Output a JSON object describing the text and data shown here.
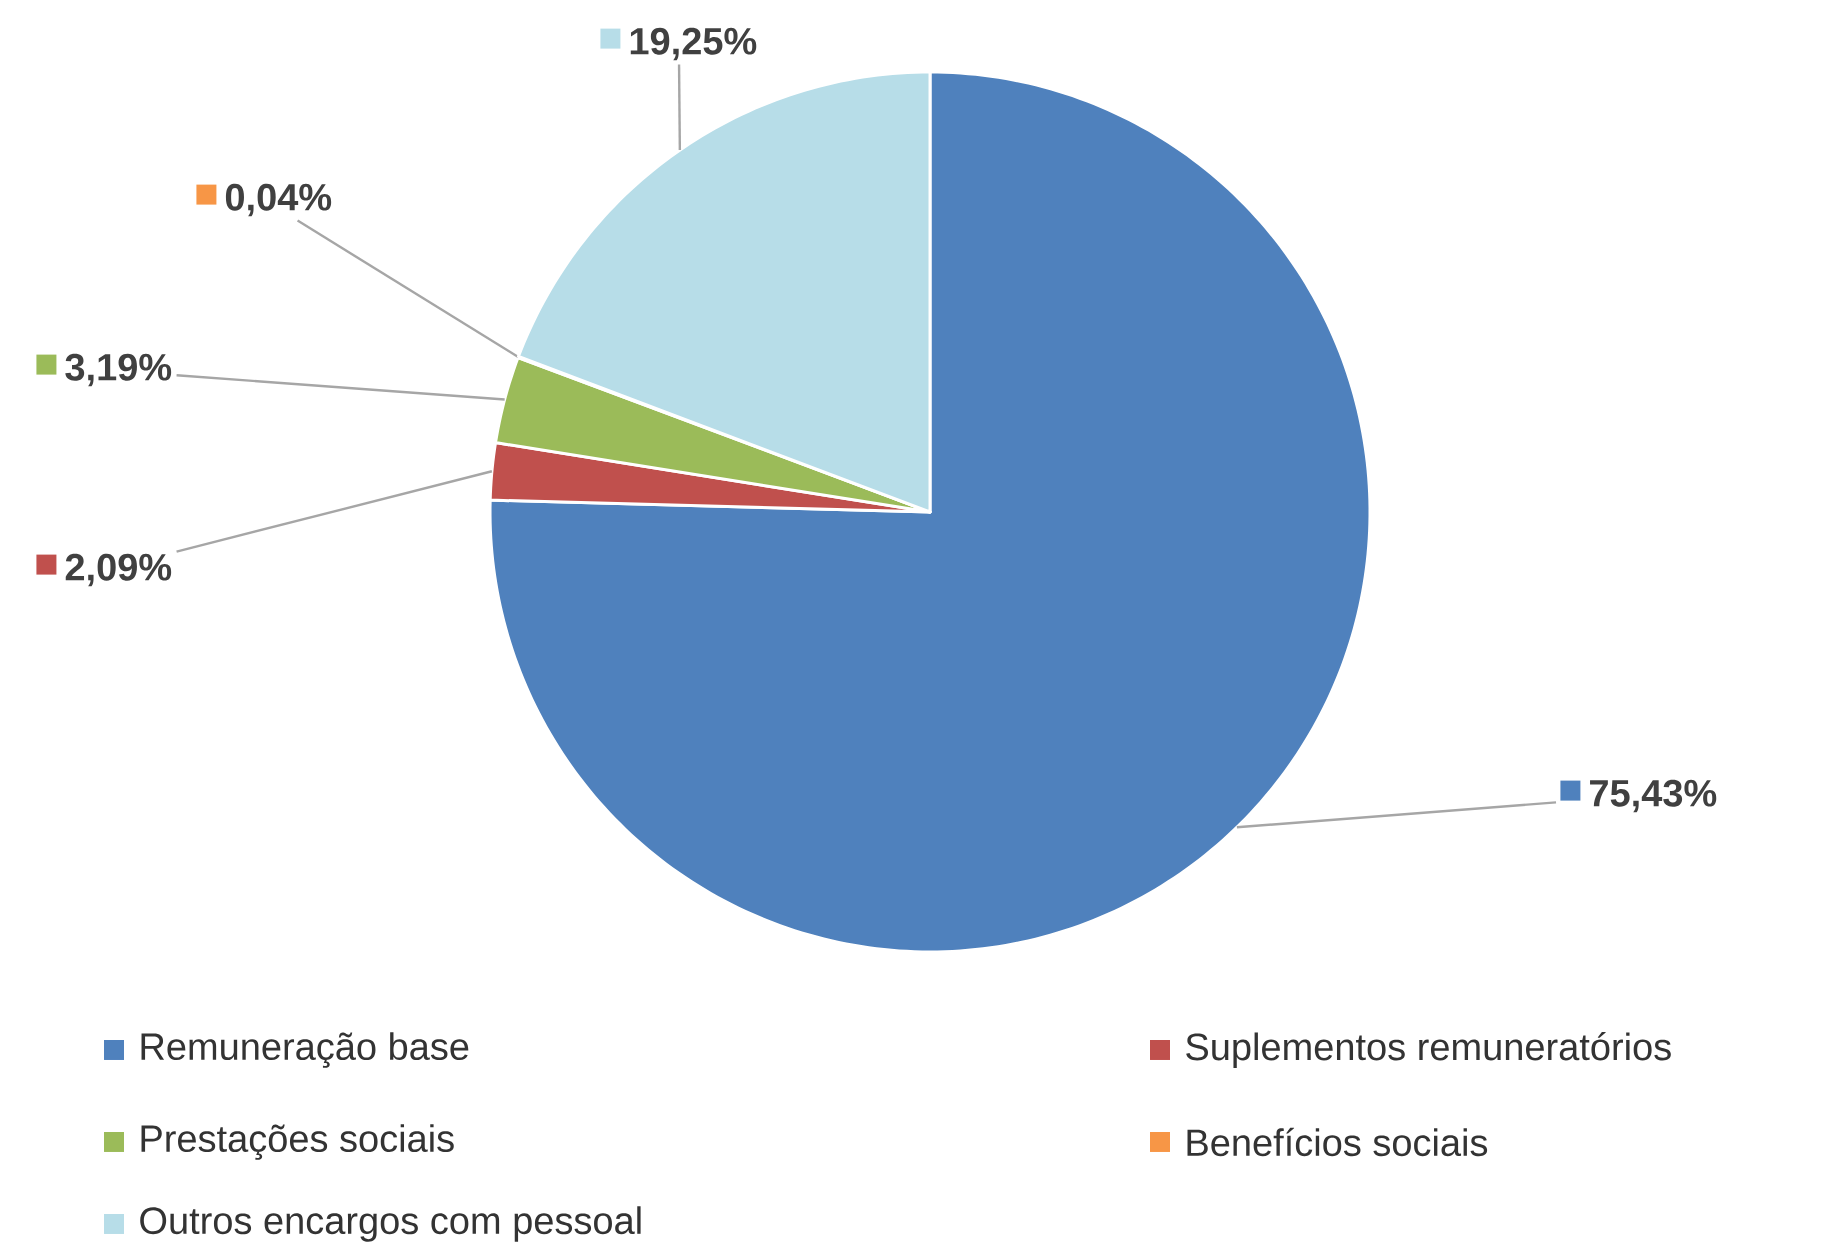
{
  "chart_data": {
    "type": "pie",
    "categories": [
      "Remuneração base",
      "Suplementos remuneratórios",
      "Prestações sociais",
      "Benefícios sociais",
      "Outros encargos com pessoal"
    ],
    "values": [
      75.43,
      2.09,
      3.19,
      0.04,
      19.25
    ],
    "value_labels": [
      "75,43%",
      "2,09%",
      "3,19%",
      "0,04%",
      "19,25%"
    ],
    "colors": [
      "#4f81bd",
      "#c0504d",
      "#9bbb59",
      "#f79646",
      "#b7dde8"
    ],
    "legend": "bottom"
  }
}
